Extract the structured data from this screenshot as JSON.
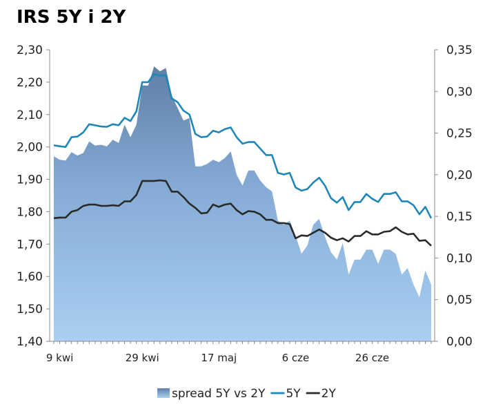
{
  "chart_data": {
    "type": "line",
    "title": "IRS 5Y i 2Y",
    "x_ticks": [
      "9 kwi",
      "29 kwi",
      "17 maj",
      "6 cze",
      "26 cze"
    ],
    "x_tick_index": [
      1,
      15,
      28,
      41,
      54
    ],
    "left_axis": {
      "ylim": [
        1.4,
        2.3
      ],
      "ticks": [
        "1,40",
        "1,50",
        "1,60",
        "1,70",
        "1,80",
        "1,90",
        "2,00",
        "2,10",
        "2,20",
        "2,30"
      ]
    },
    "right_axis": {
      "ylim": [
        0.0,
        0.35
      ],
      "ticks": [
        "0,00",
        "0,05",
        "0,10",
        "0,15",
        "0,20",
        "0,25",
        "0,30",
        "0,35"
      ]
    },
    "series": [
      {
        "name": "spread 5Y vs 2Y",
        "axis": "right",
        "kind": "area",
        "color": "#8fb3dc",
        "values": [
          0.222,
          0.218,
          0.217,
          0.227,
          0.223,
          0.226,
          0.24,
          0.235,
          0.236,
          0.234,
          0.242,
          0.238,
          0.26,
          0.245,
          0.26,
          0.307,
          0.307,
          0.33,
          0.324,
          0.328,
          0.295,
          0.28,
          0.265,
          0.268,
          0.21,
          0.21,
          0.213,
          0.218,
          0.215,
          0.22,
          0.228,
          0.2,
          0.187,
          0.205,
          0.205,
          0.193,
          0.185,
          0.18,
          0.145,
          0.14,
          0.145,
          0.127,
          0.105,
          0.115,
          0.14,
          0.147,
          0.125,
          0.107,
          0.098,
          0.118,
          0.08,
          0.098,
          0.098,
          0.11,
          0.11,
          0.093,
          0.11,
          0.11,
          0.105,
          0.08,
          0.088,
          0.068,
          0.053,
          0.085,
          0.068
        ]
      },
      {
        "name": "5Y",
        "axis": "left",
        "kind": "line",
        "color": "#1f86b8",
        "values": [
          2.005,
          2.002,
          2.0,
          2.03,
          2.032,
          2.045,
          2.07,
          2.067,
          2.063,
          2.062,
          2.07,
          2.067,
          2.09,
          2.08,
          2.11,
          2.2,
          2.2,
          2.225,
          2.22,
          2.222,
          2.15,
          2.138,
          2.112,
          2.1,
          2.04,
          2.03,
          2.032,
          2.05,
          2.045,
          2.055,
          2.06,
          2.03,
          2.01,
          2.015,
          2.015,
          1.995,
          1.975,
          1.975,
          1.92,
          1.915,
          1.92,
          1.875,
          1.865,
          1.87,
          1.89,
          1.905,
          1.88,
          1.842,
          1.828,
          1.845,
          1.805,
          1.83,
          1.83,
          1.855,
          1.84,
          1.83,
          1.855,
          1.855,
          1.86,
          1.832,
          1.832,
          1.82,
          1.792,
          1.815,
          1.78
        ]
      },
      {
        "name": "2Y",
        "axis": "left",
        "kind": "line",
        "color": "#2a2a2a",
        "values": [
          1.78,
          1.782,
          1.782,
          1.8,
          1.805,
          1.818,
          1.822,
          1.822,
          1.818,
          1.818,
          1.82,
          1.818,
          1.832,
          1.832,
          1.852,
          1.895,
          1.895,
          1.895,
          1.897,
          1.895,
          1.862,
          1.862,
          1.845,
          1.825,
          1.812,
          1.795,
          1.797,
          1.822,
          1.815,
          1.822,
          1.825,
          1.805,
          1.792,
          1.802,
          1.8,
          1.792,
          1.775,
          1.775,
          1.765,
          1.765,
          1.762,
          1.718,
          1.727,
          1.725,
          1.735,
          1.745,
          1.735,
          1.72,
          1.712,
          1.718,
          1.708,
          1.725,
          1.725,
          1.74,
          1.73,
          1.73,
          1.738,
          1.74,
          1.752,
          1.738,
          1.73,
          1.732,
          1.71,
          1.712,
          1.695
        ]
      }
    ],
    "legend_position": "bottom",
    "grid": false
  }
}
